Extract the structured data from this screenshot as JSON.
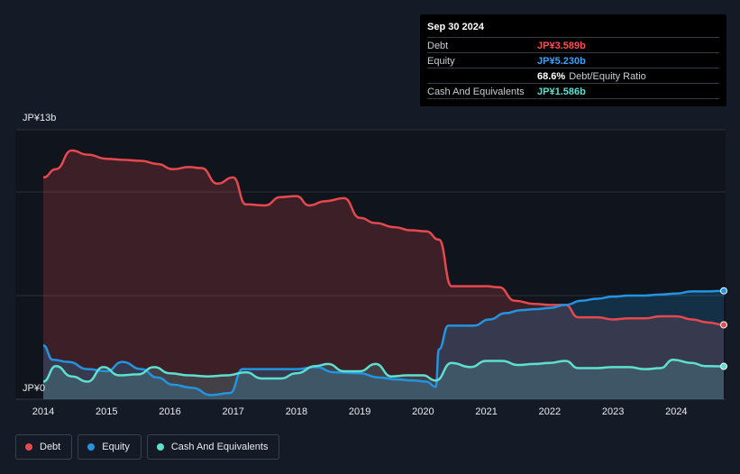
{
  "chart_data": {
    "type": "area",
    "x_axis_ticks": [
      "2014",
      "2015",
      "2016",
      "2017",
      "2018",
      "2019",
      "2020",
      "2021",
      "2022",
      "2023",
      "2024"
    ],
    "y_axis_labels": {
      "top": "JP¥13b",
      "bottom": "JP¥0"
    },
    "ylim": [
      0,
      13
    ],
    "xlim": [
      2014.0,
      2024.75
    ],
    "grid": true,
    "legend_placement": "bottom-left",
    "series": [
      {
        "name": "Debt",
        "color": "#e5484d",
        "points": [
          [
            2014.0,
            10.7
          ],
          [
            2014.2,
            11.1
          ],
          [
            2014.45,
            12.0
          ],
          [
            2014.7,
            11.8
          ],
          [
            2015.0,
            11.6
          ],
          [
            2015.25,
            11.55
          ],
          [
            2015.55,
            11.5
          ],
          [
            2015.8,
            11.35
          ],
          [
            2016.05,
            11.1
          ],
          [
            2016.3,
            11.2
          ],
          [
            2016.5,
            11.15
          ],
          [
            2016.75,
            10.4
          ],
          [
            2017.0,
            10.7
          ],
          [
            2017.2,
            9.4
          ],
          [
            2017.5,
            9.35
          ],
          [
            2017.75,
            9.75
          ],
          [
            2018.0,
            9.8
          ],
          [
            2018.2,
            9.35
          ],
          [
            2018.45,
            9.55
          ],
          [
            2018.75,
            9.7
          ],
          [
            2019.0,
            8.75
          ],
          [
            2019.25,
            8.5
          ],
          [
            2019.55,
            8.3
          ],
          [
            2019.8,
            8.15
          ],
          [
            2020.05,
            8.1
          ],
          [
            2020.25,
            7.7
          ],
          [
            2020.45,
            5.45
          ],
          [
            2020.75,
            5.45
          ],
          [
            2021.0,
            5.45
          ],
          [
            2021.2,
            5.4
          ],
          [
            2021.45,
            4.75
          ],
          [
            2021.75,
            4.6
          ],
          [
            2022.0,
            4.55
          ],
          [
            2022.25,
            4.55
          ],
          [
            2022.45,
            3.95
          ],
          [
            2022.75,
            3.95
          ],
          [
            2023.0,
            3.85
          ],
          [
            2023.25,
            3.9
          ],
          [
            2023.5,
            3.9
          ],
          [
            2023.75,
            4.0
          ],
          [
            2024.0,
            4.0
          ],
          [
            2024.25,
            3.85
          ],
          [
            2024.5,
            3.7
          ],
          [
            2024.75,
            3.589
          ]
        ]
      },
      {
        "name": "Equity",
        "color": "#2394df",
        "points": [
          [
            2014.0,
            2.6
          ],
          [
            2014.15,
            1.9
          ],
          [
            2014.4,
            1.8
          ],
          [
            2014.7,
            1.45
          ],
          [
            2015.0,
            1.35
          ],
          [
            2015.25,
            1.8
          ],
          [
            2015.55,
            1.45
          ],
          [
            2015.8,
            1.05
          ],
          [
            2016.05,
            0.7
          ],
          [
            2016.35,
            0.55
          ],
          [
            2016.65,
            0.2
          ],
          [
            2016.95,
            0.3
          ],
          [
            2017.15,
            1.45
          ],
          [
            2017.4,
            1.45
          ],
          [
            2017.7,
            1.45
          ],
          [
            2018.0,
            1.45
          ],
          [
            2018.3,
            1.55
          ],
          [
            2018.6,
            1.3
          ],
          [
            2019.0,
            1.25
          ],
          [
            2019.3,
            1.05
          ],
          [
            2019.6,
            0.95
          ],
          [
            2019.85,
            0.9
          ],
          [
            2020.05,
            0.85
          ],
          [
            2020.2,
            0.6
          ],
          [
            2020.25,
            2.4
          ],
          [
            2020.4,
            3.55
          ],
          [
            2020.55,
            3.55
          ],
          [
            2020.8,
            3.55
          ],
          [
            2021.05,
            3.85
          ],
          [
            2021.3,
            4.15
          ],
          [
            2021.55,
            4.3
          ],
          [
            2021.8,
            4.35
          ],
          [
            2022.0,
            4.4
          ],
          [
            2022.25,
            4.55
          ],
          [
            2022.5,
            4.75
          ],
          [
            2022.75,
            4.85
          ],
          [
            2023.0,
            4.95
          ],
          [
            2023.25,
            5.0
          ],
          [
            2023.5,
            5.0
          ],
          [
            2023.75,
            5.05
          ],
          [
            2024.0,
            5.1
          ],
          [
            2024.25,
            5.2
          ],
          [
            2024.5,
            5.2
          ],
          [
            2024.75,
            5.23
          ]
        ]
      },
      {
        "name": "Cash And Equivalents",
        "color": "#5ee0d0",
        "points": [
          [
            2014.0,
            0.85
          ],
          [
            2014.2,
            1.6
          ],
          [
            2014.45,
            1.1
          ],
          [
            2014.7,
            0.85
          ],
          [
            2014.95,
            1.55
          ],
          [
            2015.2,
            1.15
          ],
          [
            2015.5,
            1.2
          ],
          [
            2015.75,
            1.55
          ],
          [
            2016.0,
            1.25
          ],
          [
            2016.3,
            1.15
          ],
          [
            2016.6,
            1.1
          ],
          [
            2016.9,
            1.15
          ],
          [
            2017.2,
            1.3
          ],
          [
            2017.45,
            1.0
          ],
          [
            2017.75,
            1.0
          ],
          [
            2018.0,
            1.25
          ],
          [
            2018.3,
            1.6
          ],
          [
            2018.5,
            1.7
          ],
          [
            2018.75,
            1.35
          ],
          [
            2019.0,
            1.35
          ],
          [
            2019.25,
            1.7
          ],
          [
            2019.5,
            1.1
          ],
          [
            2019.75,
            1.15
          ],
          [
            2020.0,
            1.15
          ],
          [
            2020.2,
            0.9
          ],
          [
            2020.45,
            1.75
          ],
          [
            2020.75,
            1.55
          ],
          [
            2021.0,
            1.85
          ],
          [
            2021.25,
            1.85
          ],
          [
            2021.5,
            1.65
          ],
          [
            2021.75,
            1.7
          ],
          [
            2022.0,
            1.75
          ],
          [
            2022.25,
            1.85
          ],
          [
            2022.45,
            1.5
          ],
          [
            2022.75,
            1.5
          ],
          [
            2023.0,
            1.55
          ],
          [
            2023.25,
            1.55
          ],
          [
            2023.5,
            1.45
          ],
          [
            2023.75,
            1.5
          ],
          [
            2023.95,
            1.9
          ],
          [
            2024.25,
            1.75
          ],
          [
            2024.45,
            1.6
          ],
          [
            2024.75,
            1.586
          ]
        ]
      }
    ],
    "tooltip": {
      "date": "Sep 30 2024",
      "rows": [
        {
          "label": "Debt",
          "value": "JP¥3.589b",
          "color": "#ff4f55"
        },
        {
          "label": "Equity",
          "value": "JP¥5.230b",
          "color": "#3aa3ff"
        },
        {
          "label": "",
          "value": "68.6%",
          "suffix": "Debt/Equity Ratio",
          "color": "#ffffff"
        },
        {
          "label": "Cash And Equivalents",
          "value": "JP¥1.586b",
          "color": "#5ee0d0"
        }
      ]
    }
  },
  "legend": [
    {
      "label": "Debt",
      "color": "#e5484d"
    },
    {
      "label": "Equity",
      "color": "#2394df"
    },
    {
      "label": "Cash And Equivalents",
      "color": "#5ee0d0"
    }
  ]
}
